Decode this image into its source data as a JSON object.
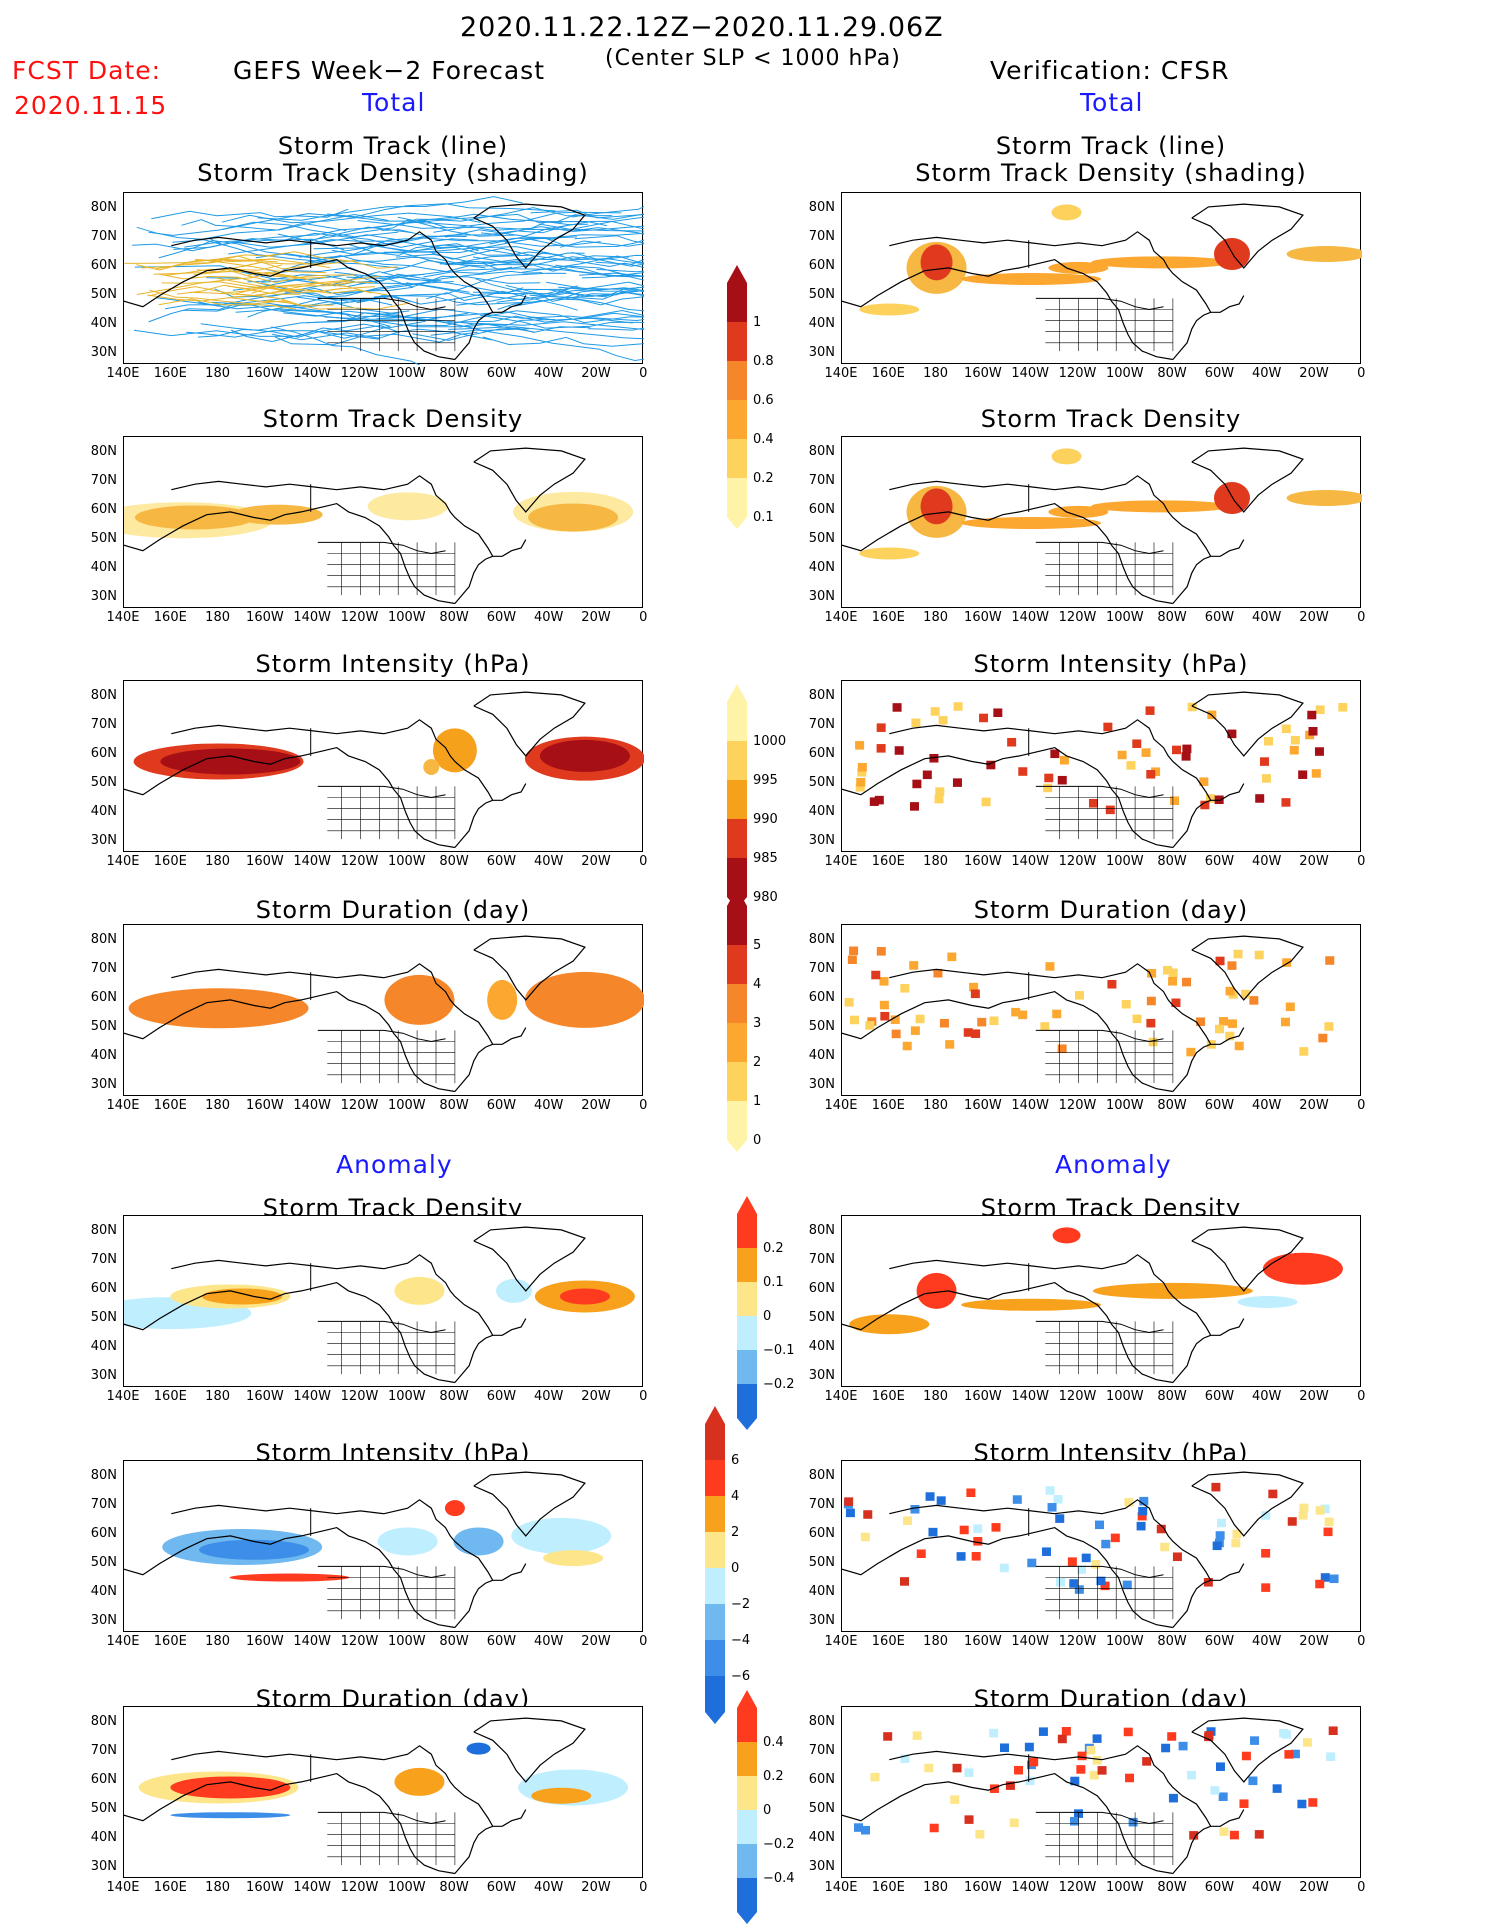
{
  "header": {
    "period": "2020.11.22.12Z−2020.11.29.06Z",
    "condition": "(Center SLP < 1000 hPa)",
    "fcst_label": "FCST Date:",
    "fcst_date": "2020.11.15",
    "left_title": "GEFS Week−2 Forecast",
    "right_title": "Verification: CFSR",
    "total_label": "Total",
    "anomaly_label": "Anomaly"
  },
  "panel_titles": {
    "track_line": "Storm Track (line)",
    "track_shading": "Storm Track Density (shading)",
    "density": "Storm Track Density",
    "intensity": "Storm Intensity (hPa)",
    "duration": "Storm Duration (day)"
  },
  "axes": {
    "lat_labels": [
      "80N",
      "70N",
      "60N",
      "50N",
      "40N",
      "30N"
    ],
    "lon_labels": [
      "140E",
      "160E",
      "180",
      "160W",
      "140W",
      "120W",
      "100W",
      "80W",
      "60W",
      "40W",
      "20W",
      "0"
    ]
  },
  "colorbars": {
    "density_total": {
      "labels": [
        "1",
        "0.8",
        "0.6",
        "0.4",
        "0.2",
        "0.1"
      ],
      "colors": [
        "#a50f15",
        "#e03a1e",
        "#f6862a",
        "#fca730",
        "#fdd25d",
        "#fff3a8"
      ]
    },
    "intensity_total": {
      "labels": [
        "1000",
        "995",
        "990",
        "985",
        "980"
      ],
      "colors": [
        "#fff3a8",
        "#fdd25d",
        "#f6a11c",
        "#e03a1e",
        "#a50f15"
      ]
    },
    "duration_total": {
      "labels": [
        "5",
        "4",
        "3",
        "2",
        "1",
        "0"
      ],
      "colors": [
        "#a50f15",
        "#e03a1e",
        "#f6862a",
        "#fca730",
        "#fdd25d",
        "#fff3a8"
      ]
    },
    "density_anom": {
      "labels": [
        "0.2",
        "0.1",
        "0",
        "−0.1",
        "−0.2"
      ],
      "colors": [
        "#ff3b1f",
        "#f7a11c",
        "#fde68a",
        "#bfefff",
        "#6fb8f0",
        "#1e6fdc"
      ]
    },
    "intensity_anom": {
      "labels": [
        "6",
        "4",
        "2",
        "0",
        "−2",
        "−4",
        "−6"
      ],
      "colors": [
        "#d7301f",
        "#ff3b1f",
        "#f7a11c",
        "#fde68a",
        "#bfefff",
        "#6fb8f0",
        "#3d8ee8",
        "#1e6fdc"
      ]
    },
    "duration_anom": {
      "labels": [
        "0.4",
        "0.2",
        "0",
        "−0.2",
        "−0.4"
      ],
      "colors": [
        "#ff3b1f",
        "#f7a11c",
        "#fde68a",
        "#bfefff",
        "#6fb8f0",
        "#1e6fdc"
      ]
    }
  }
}
